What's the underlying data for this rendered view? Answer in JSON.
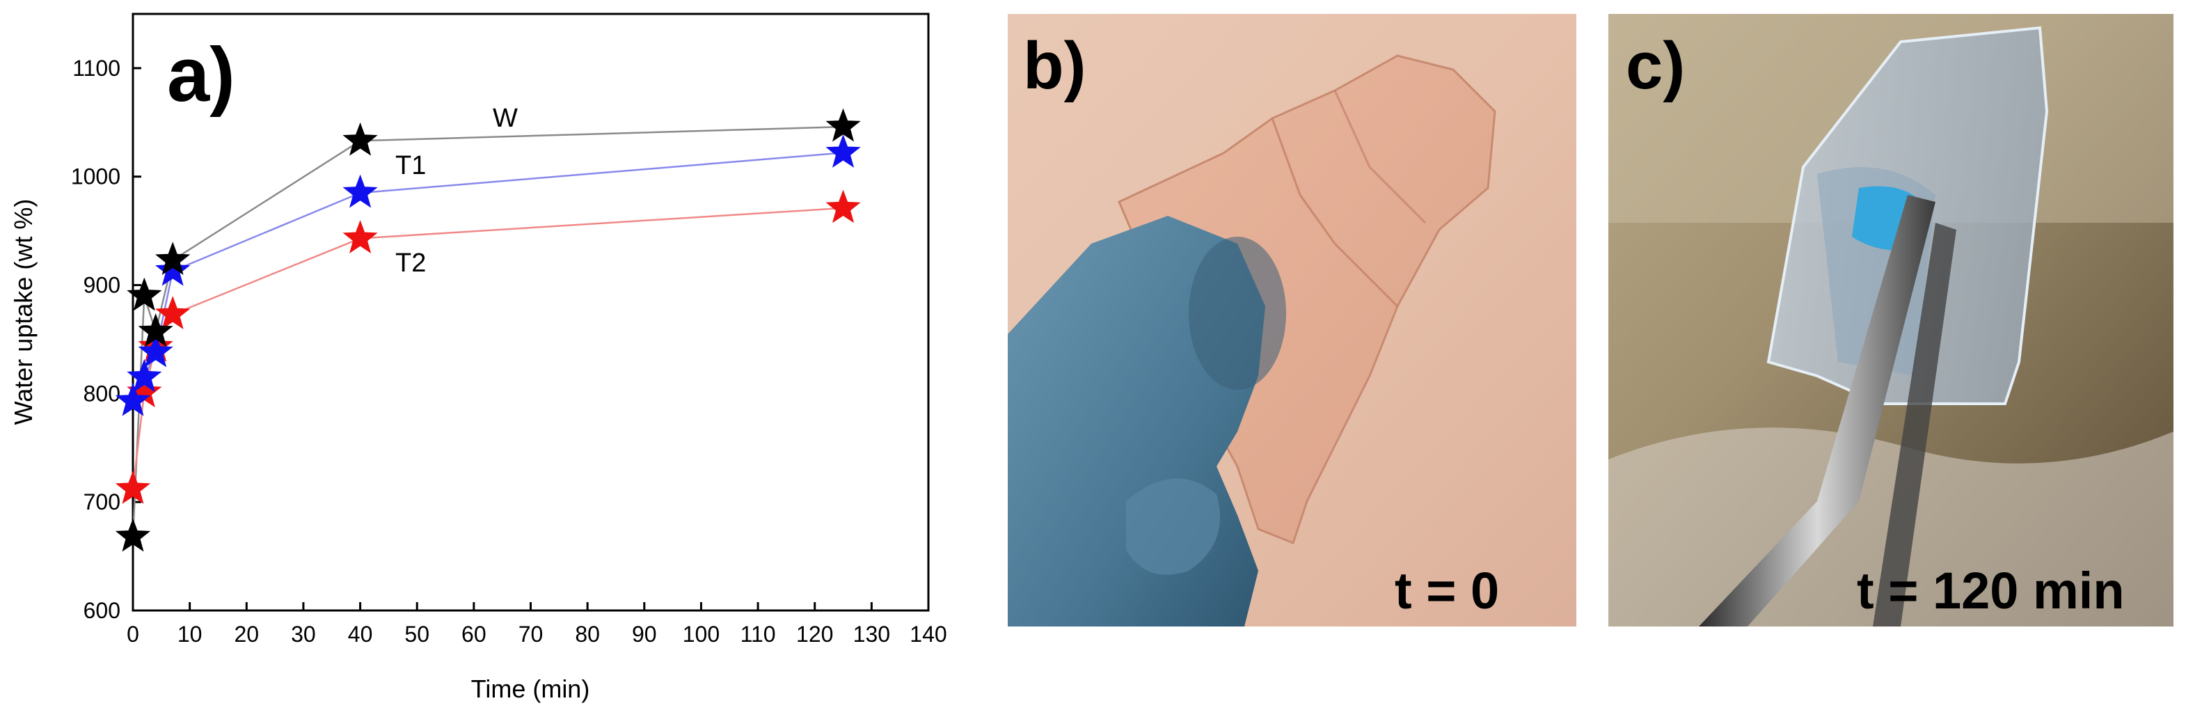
{
  "panels": {
    "a_label": "a)",
    "b_label": "b)",
    "c_label": "c)",
    "b_time": "t = 0",
    "c_time": "t = 120 min"
  },
  "colors": {
    "W": "#000000",
    "T1": "#1010ee",
    "T2": "#ee1111",
    "W_line": "#8a8a8a",
    "T1_line": "#8888ee",
    "T2_line": "#f08888"
  },
  "chart_data": {
    "type": "line",
    "xlabel": "Time (min)",
    "ylabel": "Water uptake (wt %)",
    "xlim": [
      0,
      140
    ],
    "ylim": [
      600,
      1150
    ],
    "xticks": [
      0,
      10,
      20,
      30,
      40,
      50,
      60,
      70,
      80,
      90,
      100,
      110,
      120,
      130,
      140
    ],
    "yticks": [
      600,
      700,
      800,
      900,
      1000,
      1100
    ],
    "grid": false,
    "marker": "star",
    "series": [
      {
        "name": "W",
        "x": [
          0,
          2,
          4,
          7,
          40,
          125
        ],
        "y": [
          668,
          890,
          857,
          923,
          1033,
          1046
        ]
      },
      {
        "name": "T1",
        "x": [
          0,
          2,
          4,
          7,
          40,
          125
        ],
        "y": [
          793,
          815,
          838,
          913,
          985,
          1022
        ]
      },
      {
        "name": "T2",
        "x": [
          0,
          2,
          4,
          7,
          40,
          125
        ],
        "y": [
          712,
          801,
          843,
          873,
          943,
          971
        ]
      }
    ]
  }
}
